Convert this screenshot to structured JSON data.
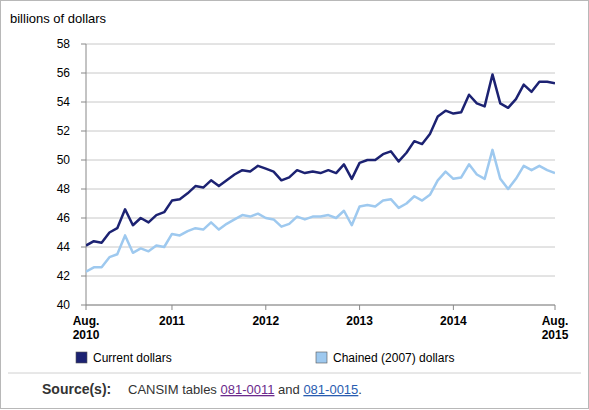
{
  "chart_data": {
    "type": "line",
    "y_label": "billions of dollars",
    "categories": [
      "Aug. 2010",
      null,
      null,
      null,
      null,
      null,
      null,
      null,
      null,
      null,
      null,
      "2011",
      null,
      null,
      null,
      null,
      null,
      null,
      null,
      null,
      null,
      null,
      null,
      "2012",
      null,
      null,
      null,
      null,
      null,
      null,
      null,
      null,
      null,
      null,
      null,
      "2013",
      null,
      null,
      null,
      null,
      null,
      null,
      null,
      null,
      null,
      null,
      null,
      "2014",
      null,
      null,
      null,
      null,
      null,
      null,
      null,
      null,
      null,
      null,
      null,
      null,
      "Aug. 2015"
    ],
    "series": [
      {
        "name": "Current dollars",
        "color": "#1c2272",
        "values": [
          44.1,
          44.4,
          44.3,
          45.0,
          45.3,
          46.6,
          45.5,
          46.0,
          45.7,
          46.2,
          46.4,
          47.2,
          47.3,
          47.7,
          48.2,
          48.1,
          48.6,
          48.2,
          48.6,
          49.0,
          49.3,
          49.2,
          49.6,
          49.4,
          49.2,
          48.6,
          48.8,
          49.3,
          49.1,
          49.2,
          49.1,
          49.3,
          49.1,
          49.7,
          48.7,
          49.8,
          50.0,
          50.0,
          50.4,
          50.6,
          49.9,
          50.5,
          51.3,
          51.1,
          51.8,
          53.0,
          53.4,
          53.2,
          53.3,
          54.5,
          53.9,
          53.7,
          55.9,
          53.9,
          53.6,
          54.2,
          55.2,
          54.7,
          55.4,
          55.4,
          55.3
        ]
      },
      {
        "name": "Chained (2007) dollars",
        "color": "#9ec9ef",
        "values": [
          42.3,
          42.6,
          42.6,
          43.3,
          43.5,
          44.8,
          43.6,
          43.9,
          43.7,
          44.1,
          44.0,
          44.9,
          44.8,
          45.1,
          45.3,
          45.2,
          45.7,
          45.2,
          45.6,
          45.9,
          46.2,
          46.1,
          46.3,
          46.0,
          45.9,
          45.4,
          45.6,
          46.1,
          45.9,
          46.1,
          46.1,
          46.2,
          46.0,
          46.5,
          45.5,
          46.8,
          46.9,
          46.8,
          47.2,
          47.3,
          46.7,
          47.0,
          47.5,
          47.2,
          47.6,
          48.6,
          49.2,
          48.7,
          48.8,
          49.7,
          49.0,
          48.7,
          50.7,
          48.7,
          48.0,
          48.7,
          49.6,
          49.3,
          49.6,
          49.3,
          49.1
        ]
      }
    ],
    "ylim": [
      40,
      58
    ],
    "yticks": [
      40,
      42,
      44,
      46,
      48,
      50,
      52,
      54,
      56,
      58
    ],
    "grid": true,
    "legend": "bottom",
    "source": {
      "label": "Source(s):",
      "text": [
        "CANSIM tables ",
        "081-0011",
        " and ",
        "081-0015",
        "."
      ]
    }
  }
}
